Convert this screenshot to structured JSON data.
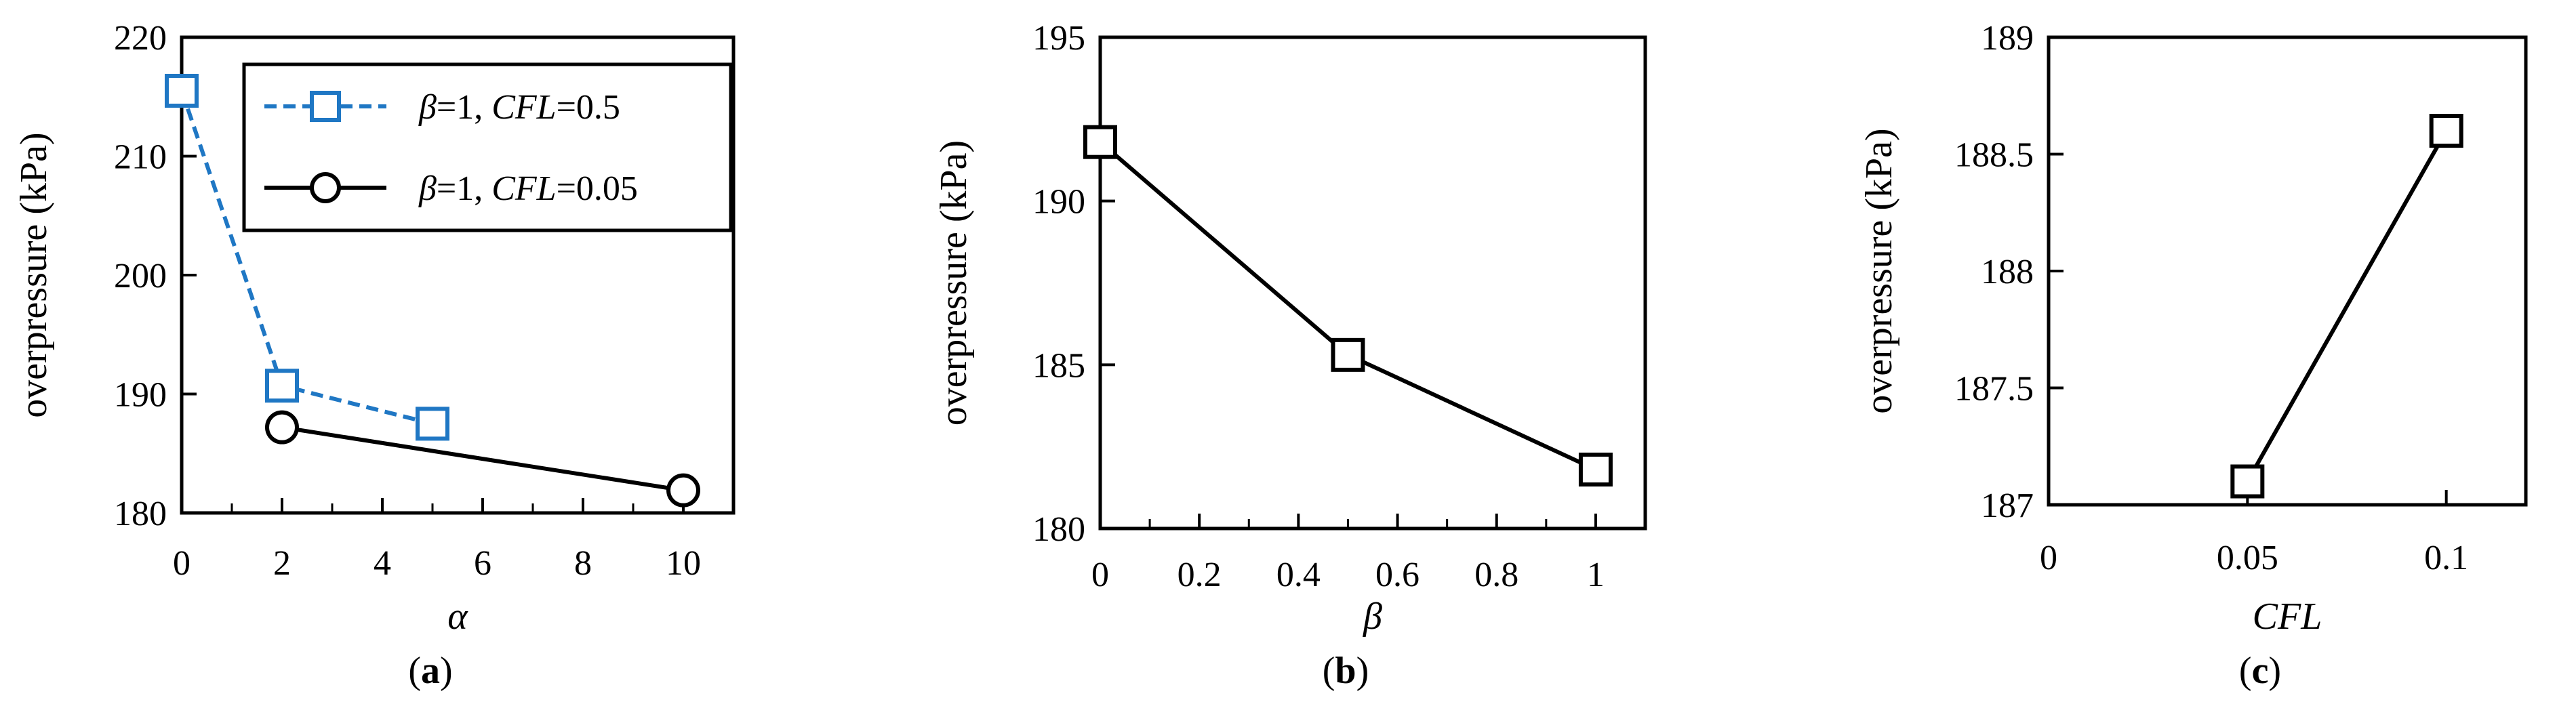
{
  "chart_data": [
    {
      "panel_label": "a",
      "type": "line",
      "xlabel": "α",
      "ylabel": "overpressure (kPa)",
      "xlim": [
        0,
        11
      ],
      "ylim": [
        180,
        220
      ],
      "xticks": [
        0,
        2,
        4,
        6,
        8,
        10
      ],
      "yticks": [
        180,
        190,
        200,
        210,
        220
      ],
      "legend_position": "top-right",
      "series": [
        {
          "legend": [
            {
              "text": "β",
              "italic": true
            },
            {
              "text": "=1, ",
              "italic": false
            },
            {
              "text": "CFL",
              "italic": true
            },
            {
              "text": "=0.5",
              "italic": false
            }
          ],
          "marker": "square",
          "line_style": "dashed",
          "color": "#1f77c4",
          "x": [
            0,
            2,
            5
          ],
          "y": [
            215.5,
            190.7,
            187.5
          ]
        },
        {
          "legend": [
            {
              "text": "β",
              "italic": true
            },
            {
              "text": "=1, ",
              "italic": false
            },
            {
              "text": "CFL",
              "italic": true
            },
            {
              "text": "=0.05",
              "italic": false
            }
          ],
          "marker": "circle",
          "line_style": "solid",
          "color": "#000000",
          "x": [
            2,
            10
          ],
          "y": [
            187.2,
            181.9
          ]
        }
      ]
    },
    {
      "panel_label": "b",
      "type": "line",
      "xlabel": "β",
      "ylabel": "overpressure (kPa)",
      "xlim": [
        0,
        1.1
      ],
      "ylim": [
        180,
        195
      ],
      "xticks": [
        0,
        0.2,
        0.4,
        0.6,
        0.8,
        1
      ],
      "xtick_labels": [
        "0",
        "0.2",
        "0.4",
        "0.6",
        "0.8",
        "1"
      ],
      "yticks": [
        180,
        185,
        190,
        195
      ],
      "series": [
        {
          "marker": "square",
          "line_style": "solid",
          "color": "#000000",
          "x": [
            0,
            0.5,
            1
          ],
          "y": [
            191.8,
            185.3,
            181.8
          ]
        }
      ]
    },
    {
      "panel_label": "c",
      "type": "line",
      "xlabel": "CFL",
      "ylabel": "overpressure (kPa)",
      "xlim": [
        0,
        0.12
      ],
      "ylim": [
        187,
        189
      ],
      "xticks": [
        0,
        0.05,
        0.1
      ],
      "xtick_labels": [
        "0",
        "0.05",
        "0.1"
      ],
      "yticks": [
        187,
        187.5,
        188,
        188.5,
        189
      ],
      "ytick_labels": [
        "187",
        "187.5",
        "188",
        "188.5",
        "189"
      ],
      "series": [
        {
          "marker": "square",
          "line_style": "solid",
          "color": "#000000",
          "x": [
            0.05,
            0.1
          ],
          "y": [
            187.1,
            188.6
          ]
        }
      ]
    }
  ]
}
